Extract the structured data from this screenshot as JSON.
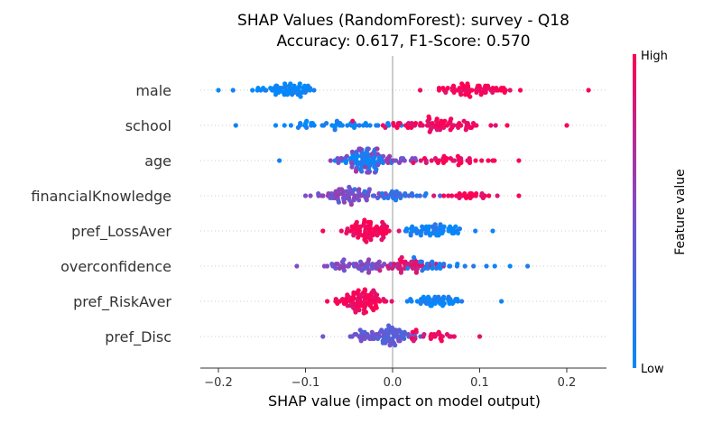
{
  "chart_data": {
    "type": "scatter",
    "title": [
      "SHAP Values (RandomForest): survey - Q18",
      "Accuracy: 0.617, F1-Score: 0.570"
    ],
    "xlabel": "SHAP value (impact on model output)",
    "xlim": [
      -0.225,
      0.25
    ],
    "xticks": [
      -0.2,
      -0.1,
      0.0,
      0.1,
      0.2
    ],
    "xtick_labels": [
      "−0.2",
      "−0.1",
      "0.0",
      "0.1",
      "0.2"
    ],
    "colorbar": {
      "label": "Feature value",
      "high": "High",
      "low": "Low",
      "low_color": "#008afb",
      "high_color": "#ff0052"
    },
    "features": [
      {
        "name": "male",
        "shap_range": [
          -0.2,
          0.225
        ],
        "clusters": [
          {
            "center": -0.125,
            "spread": 0.04,
            "color": 0.02,
            "n": 60
          },
          {
            "center": 0.09,
            "spread": 0.045,
            "color": 0.98,
            "n": 65
          }
        ]
      },
      {
        "name": "school",
        "shap_range": [
          -0.18,
          0.2
        ],
        "clusters": [
          {
            "center": -0.06,
            "spread": 0.06,
            "color": 0.05,
            "n": 45
          },
          {
            "center": 0.05,
            "spread": 0.06,
            "color": 0.95,
            "n": 75
          }
        ]
      },
      {
        "name": "age",
        "shap_range": [
          -0.13,
          0.145
        ],
        "clusters": [
          {
            "center": -0.03,
            "spread": 0.025,
            "color": 0.08,
            "n": 80
          },
          {
            "center": -0.02,
            "spread": 0.05,
            "color": 0.55,
            "n": 40
          },
          {
            "center": 0.07,
            "spread": 0.045,
            "color": 0.95,
            "n": 35
          }
        ]
      },
      {
        "name": "financialKnowledge",
        "shap_range": [
          -0.1,
          0.145
        ],
        "clusters": [
          {
            "center": -0.05,
            "spread": 0.035,
            "color": 0.5,
            "n": 70
          },
          {
            "center": 0.0,
            "spread": 0.04,
            "color": 0.2,
            "n": 30
          },
          {
            "center": 0.08,
            "spread": 0.04,
            "color": 0.95,
            "n": 25
          }
        ]
      },
      {
        "name": "pref_LossAver",
        "shap_range": [
          -0.08,
          0.115
        ],
        "clusters": [
          {
            "center": -0.03,
            "spread": 0.025,
            "color": 0.98,
            "n": 75
          },
          {
            "center": 0.05,
            "spread": 0.035,
            "color": 0.05,
            "n": 60
          }
        ]
      },
      {
        "name": "overconfidence",
        "shap_range": [
          -0.11,
          0.155
        ],
        "clusters": [
          {
            "center": -0.04,
            "spread": 0.035,
            "color": 0.5,
            "n": 55
          },
          {
            "center": 0.02,
            "spread": 0.035,
            "color": 0.85,
            "n": 45
          },
          {
            "center": 0.07,
            "spread": 0.04,
            "color": 0.1,
            "n": 25
          }
        ]
      },
      {
        "name": "pref_RiskAver",
        "shap_range": [
          -0.075,
          0.125
        ],
        "clusters": [
          {
            "center": -0.035,
            "spread": 0.022,
            "color": 0.98,
            "n": 85
          },
          {
            "center": 0.05,
            "spread": 0.03,
            "color": 0.05,
            "n": 45
          }
        ]
      },
      {
        "name": "pref_Disc",
        "shap_range": [
          -0.08,
          0.1
        ],
        "clusters": [
          {
            "center": -0.01,
            "spread": 0.035,
            "color": 0.4,
            "n": 85
          },
          {
            "center": 0.05,
            "spread": 0.03,
            "color": 0.9,
            "n": 25
          }
        ]
      }
    ],
    "grid": false
  }
}
